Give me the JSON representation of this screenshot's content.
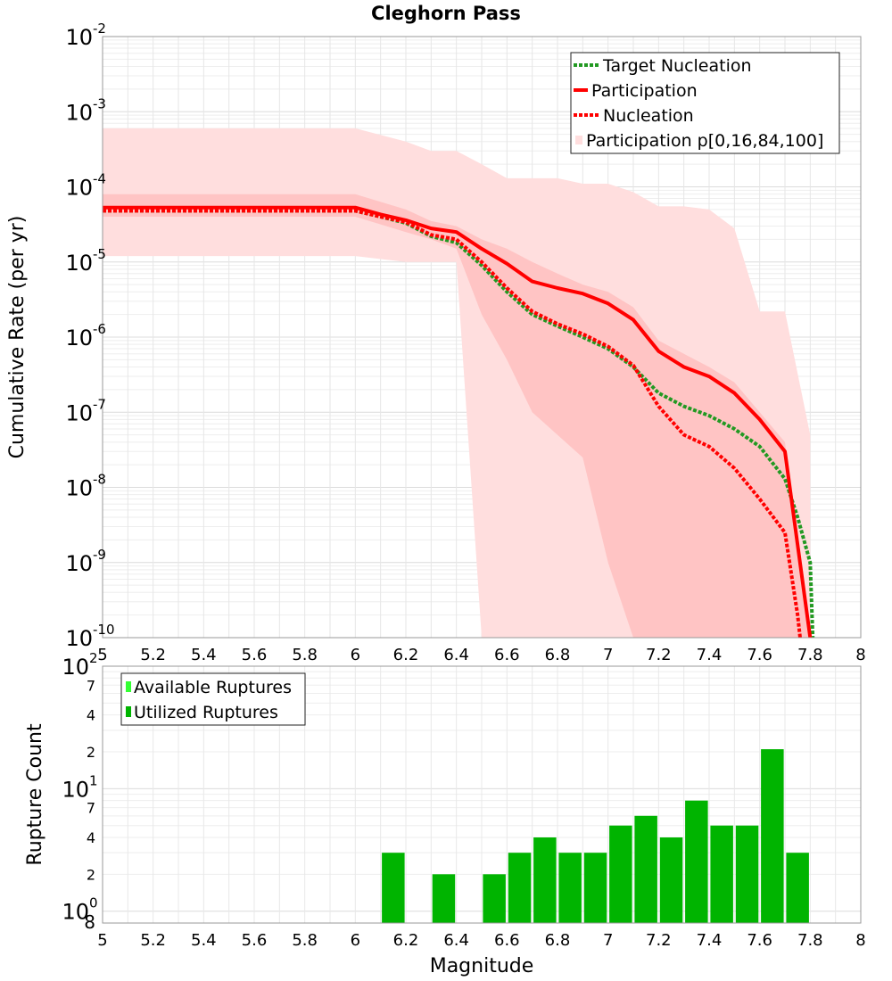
{
  "chart_data": [
    {
      "type": "line",
      "title": "Cleghorn Pass",
      "xlabel": "",
      "ylabel": "Cumulative Rate (per yr)",
      "xlim": [
        5,
        8
      ],
      "ylim": [
        1e-10,
        0.01
      ],
      "yscale": "log",
      "grid": true,
      "legend_position": "top-right",
      "x_ticks": [
        "5",
        "5.2",
        "5.4",
        "5.6",
        "5.8",
        "6",
        "6.2",
        "6.4",
        "6.6",
        "6.8",
        "7",
        "7.2",
        "7.4",
        "7.6",
        "7.8",
        "8"
      ],
      "y_ticks": [
        {
          "base": "10",
          "exp": "-2",
          "value": 0.01
        },
        {
          "base": "10",
          "exp": "-3",
          "value": 0.001
        },
        {
          "base": "10",
          "exp": "-4",
          "value": 0.0001
        },
        {
          "base": "10",
          "exp": "-5",
          "value": 1e-05
        },
        {
          "base": "10",
          "exp": "-6",
          "value": 1e-06
        },
        {
          "base": "10",
          "exp": "-7",
          "value": 1e-07
        },
        {
          "base": "10",
          "exp": "-8",
          "value": 1e-08
        },
        {
          "base": "10",
          "exp": "-9",
          "value": 1e-09
        },
        {
          "base": "10",
          "exp": "-10",
          "value": 1e-10
        }
      ],
      "bands": [
        {
          "name": "Participation p[0,16,84,100]",
          "kind": "outer",
          "color": "#ffdede",
          "x": [
            5.0,
            6.0,
            6.2,
            6.3,
            6.4,
            6.5,
            6.6,
            6.7,
            6.8,
            6.9,
            7.0,
            7.1,
            7.2,
            7.3,
            7.4,
            7.5,
            7.6,
            7.7,
            7.8
          ],
          "upper": [
            0.0006,
            0.0006,
            0.0004,
            0.0003,
            0.0003,
            0.0002,
            0.00013,
            0.00013,
            0.00013,
            0.00011,
            0.00011,
            8.5e-05,
            5.5e-05,
            5.5e-05,
            5e-05,
            2.8e-05,
            2.2e-06,
            2.2e-06,
            5e-08
          ],
          "lower": [
            1.2e-05,
            1.2e-05,
            1e-05,
            1e-05,
            1e-05,
            1e-10,
            1e-10,
            1e-10,
            1e-10,
            1e-10,
            1e-10,
            1e-10,
            1e-10,
            1e-10,
            1e-10,
            1e-10,
            1e-10,
            1e-10,
            1e-10
          ]
        },
        {
          "name": "",
          "kind": "inner",
          "color": "#ffc4c4",
          "x": [
            5.0,
            6.0,
            6.2,
            6.3,
            6.4,
            6.5,
            6.6,
            6.7,
            6.8,
            6.9,
            7.0,
            7.1,
            7.2,
            7.3,
            7.4,
            7.5,
            7.6,
            7.7,
            7.8
          ],
          "upper": [
            8e-05,
            8e-05,
            5e-05,
            3.5e-05,
            3e-05,
            2e-05,
            1.5e-05,
            1e-05,
            7e-06,
            5e-06,
            4e-06,
            2.5e-06,
            9e-07,
            6e-07,
            4e-07,
            2.5e-07,
            1e-07,
            4e-08,
            1e-10
          ],
          "lower": [
            4e-05,
            4e-05,
            2.5e-05,
            2e-05,
            1.5e-05,
            2e-06,
            5e-07,
            1e-07,
            5e-08,
            2.5e-08,
            1e-09,
            1e-10,
            1e-10,
            1e-10,
            1e-10,
            1e-10,
            1e-10,
            1e-10,
            1e-10
          ]
        }
      ],
      "series": [
        {
          "name": "Target Nucleation",
          "color": "#229922",
          "style": "dotted",
          "x": [
            5.0,
            6.0,
            6.1,
            6.2,
            6.3,
            6.4,
            6.5,
            6.6,
            6.7,
            6.8,
            6.9,
            7.0,
            7.1,
            7.2,
            7.3,
            7.4,
            7.5,
            7.6,
            7.7,
            7.75,
            7.8,
            7.81
          ],
          "y": [
            4.8e-05,
            4.8e-05,
            4e-05,
            3.3e-05,
            2.2e-05,
            1.8e-05,
            9e-06,
            4e-06,
            2e-06,
            1.4e-06,
            1e-06,
            7e-07,
            4e-07,
            1.8e-07,
            1.2e-07,
            9e-08,
            6e-08,
            3.5e-08,
            1.3e-08,
            4e-09,
            1e-09,
            1e-10
          ]
        },
        {
          "name": "Participation",
          "color": "#ff0000",
          "style": "solid",
          "x": [
            5.0,
            6.0,
            6.1,
            6.2,
            6.3,
            6.4,
            6.5,
            6.6,
            6.7,
            6.8,
            6.9,
            7.0,
            7.1,
            7.2,
            7.3,
            7.4,
            7.5,
            7.6,
            7.7,
            7.8
          ],
          "y": [
            5.3e-05,
            5.3e-05,
            4.3e-05,
            3.6e-05,
            2.8e-05,
            2.5e-05,
            1.5e-05,
            9.5e-06,
            5.5e-06,
            4.5e-06,
            3.8e-06,
            2.8e-06,
            1.7e-06,
            6.5e-07,
            4e-07,
            3e-07,
            1.8e-07,
            8e-08,
            3e-08,
            1e-10
          ]
        },
        {
          "name": "Nucleation",
          "color": "#ff0000",
          "style": "dotted",
          "x": [
            5.0,
            6.0,
            6.1,
            6.2,
            6.3,
            6.4,
            6.5,
            6.6,
            6.7,
            6.8,
            6.9,
            7.0,
            7.1,
            7.2,
            7.3,
            7.4,
            7.5,
            7.6,
            7.7,
            7.75,
            7.76
          ],
          "y": [
            4.8e-05,
            4.8e-05,
            4e-05,
            3.4e-05,
            2.3e-05,
            2e-05,
            1e-05,
            4.5e-06,
            2.2e-06,
            1.5e-06,
            1.1e-06,
            7.5e-07,
            4.2e-07,
            1.2e-07,
            5e-08,
            3.5e-08,
            1.8e-08,
            7e-09,
            2.5e-09,
            2e-10,
            1e-10
          ]
        }
      ],
      "legend": [
        {
          "label": "Target Nucleation",
          "kind": "line-dotted",
          "color": "#229922"
        },
        {
          "label": "Participation",
          "kind": "line-solid",
          "color": "#ff0000"
        },
        {
          "label": "Nucleation",
          "kind": "line-dotted",
          "color": "#ff0000"
        },
        {
          "label": "Participation p[0,16,84,100]",
          "kind": "patch",
          "color": "#ffdede"
        }
      ]
    },
    {
      "type": "bar",
      "title": "",
      "xlabel": "Magnitude",
      "ylabel": "Rupture Count",
      "xlim": [
        5,
        8
      ],
      "ylim": [
        0.8,
        100
      ],
      "yscale": "log",
      "grid": true,
      "legend_position": "top-left",
      "x_ticks": [
        "5",
        "5.2",
        "5.4",
        "5.6",
        "5.8",
        "6",
        "6.2",
        "6.4",
        "6.6",
        "6.8",
        "7",
        "7.2",
        "7.4",
        "7.6",
        "7.8",
        "8"
      ],
      "y_major_ticks": [
        {
          "base": "10",
          "exp": "2",
          "value": 100
        },
        {
          "base": "10",
          "exp": "1",
          "value": 10
        },
        {
          "base": "10",
          "exp": "0",
          "value": 1
        }
      ],
      "y_minor_labels": [
        {
          "label": "7",
          "value": 70
        },
        {
          "label": "4",
          "value": 40
        },
        {
          "label": "2",
          "value": 20
        },
        {
          "label": "7",
          "value": 7
        },
        {
          "label": "4",
          "value": 4
        },
        {
          "label": "2",
          "value": 2
        },
        {
          "label": "8",
          "value": 0.8
        }
      ],
      "bar_width": 0.09,
      "series": [
        {
          "name": "Utilized Ruptures",
          "color": "#00b400",
          "x": [
            6.15,
            6.35,
            6.55,
            6.65,
            6.75,
            6.85,
            6.95,
            7.05,
            7.15,
            7.25,
            7.35,
            7.45,
            7.55,
            7.65,
            7.75
          ],
          "values": [
            3,
            2,
            2,
            3,
            4,
            3,
            3,
            5,
            6,
            4,
            8,
            5,
            5,
            21,
            3
          ]
        }
      ],
      "legend": [
        {
          "label": "Available Ruptures",
          "kind": "patch",
          "color": "#33ff33"
        },
        {
          "label": "Utilized Ruptures",
          "kind": "patch",
          "color": "#00b400"
        }
      ]
    }
  ]
}
